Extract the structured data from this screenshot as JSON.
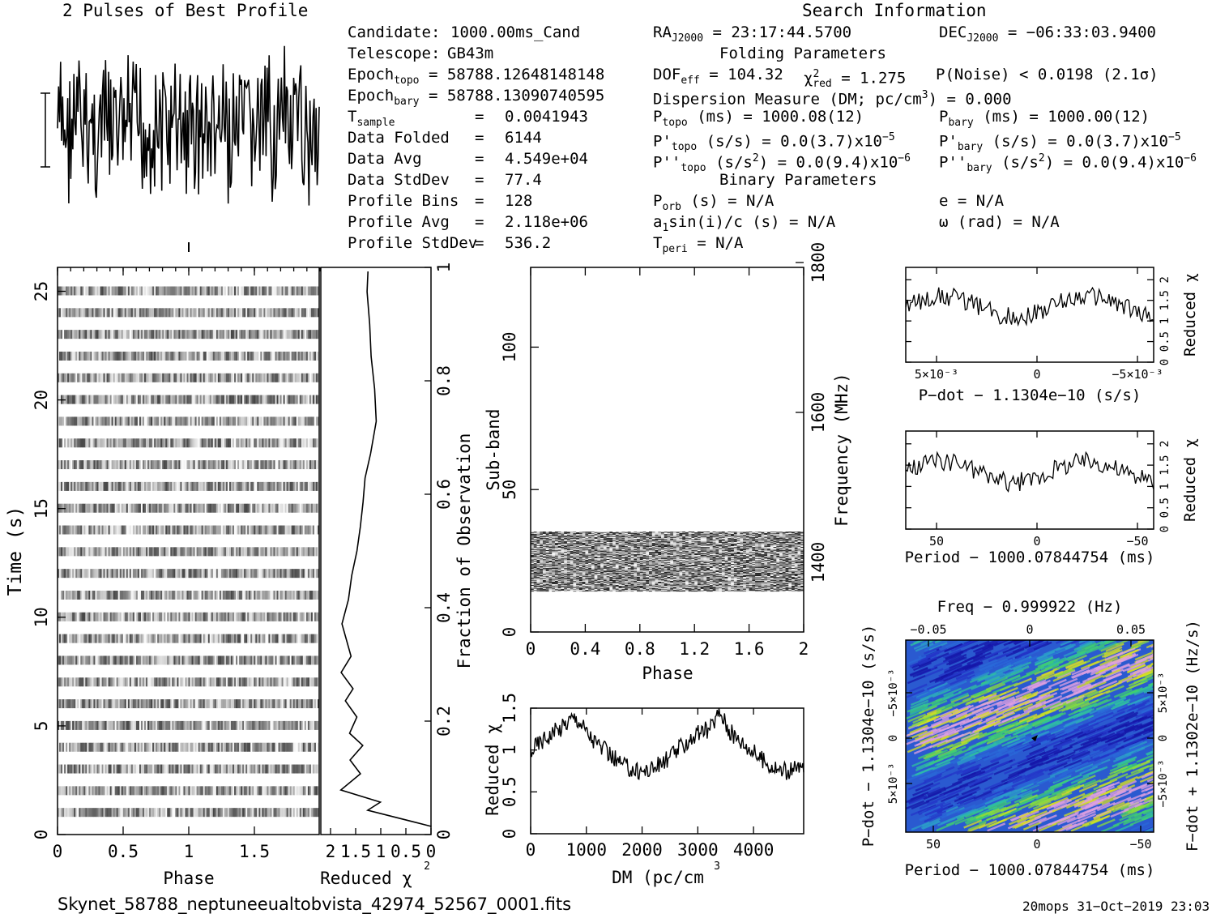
{
  "profile_title": "2 Pulses of Best Profile",
  "search_title": "Search Information",
  "info_left": [
    [
      "Candidate:",
      "1000.00ms_Cand"
    ],
    [
      "Telescope:",
      "GB43m"
    ],
    [
      "Epoch",
      "topo",
      "= 58788.12648148148"
    ],
    [
      "Epoch",
      "bary",
      "= 58788.13090740595"
    ],
    [
      "T",
      "sample",
      "=",
      "0.0041943"
    ],
    [
      "Data Folded",
      "=",
      "6144"
    ],
    [
      "Data Avg",
      "=",
      "4.549e+04"
    ],
    [
      "Data StdDev",
      "=",
      "77.4"
    ],
    [
      "Profile Bins",
      "=",
      "128"
    ],
    [
      "Profile Avg",
      "=",
      "2.118e+06"
    ],
    [
      "Profile StdDev",
      "=",
      "536.2"
    ]
  ],
  "info_mid": {
    "ra": "= 23:17:44.5700",
    "dec": "= −06:33:03.9400",
    "folding_title": "Folding Parameters",
    "dof": "= 104.32",
    "chi2": "= 1.275",
    "pnoise": "P(Noise) < 0.0198   (2.1σ)",
    "dm_line": "Dispersion Measure (DM; pc/cm",
    "dm_val": ") = 0.000",
    "ptopo": "(ms) =  1000.08(12)",
    "pbary": "(ms) =  1000.00(12)",
    "pdtopo": "(s/s) = 0.0(3.7)x10",
    "pdtopo_exp": "−5",
    "pdbary": "(s/s) = 0.0(3.7)x10",
    "pdbary_exp": "−5",
    "pddtopo": "(s/s",
    "pddtopo_val": ") = 0.0(9.4)x10",
    "pddtopo_exp": "−6",
    "pddbary": "(s/s",
    "pddbary_val": ") = 0.0(9.4)x10",
    "pddbary_exp": "−6",
    "binary_title": "Binary Parameters",
    "porb": "(s) = N/A",
    "e": "e = N/A",
    "a1": "sin(i)/c (s) = N/A",
    "omega": "ω (rad) = N/A",
    "tperi": "= N/A"
  },
  "footer_file": "Skynet_58788_neptuneeualtobvista_42974_52567_0001.fits",
  "footer_stamp": "20mops 31−Oct−2019 23:03",
  "chart_data": [
    {
      "type": "line",
      "title": "2 Pulses of Best Profile",
      "xlim": [
        0,
        2
      ]
    },
    {
      "type": "heatmap",
      "name": "time-phase",
      "xlabel": "Phase",
      "ylabel": "Time (s)",
      "xlim": [
        0,
        2
      ],
      "ylim": [
        0,
        26
      ],
      "xticks": [
        "0",
        "0.5",
        "1",
        "1.5"
      ],
      "yticks": [
        "0",
        "5",
        "10",
        "15",
        "20",
        "25"
      ]
    },
    {
      "type": "line",
      "name": "reduced-chi2-vs-time",
      "xlabel": "Reduced χ",
      "xticks": [
        "2",
        "1.5",
        "1",
        "0.5",
        "0"
      ],
      "right_label": "Fraction of Observation",
      "right_ticks": [
        "0",
        "0.2",
        "0.4",
        "0.6",
        "0.8",
        "1"
      ]
    },
    {
      "type": "heatmap",
      "name": "subband-phase",
      "xlabel": "Phase",
      "ylabel": "Sub-band",
      "right_label": "Frequency (MHz)",
      "xlim": [
        0,
        2
      ],
      "ylim": [
        0,
        128
      ],
      "xticks": [
        "0",
        "0.4",
        "0.8",
        "1.2",
        "1.6",
        "2"
      ],
      "yticks": [
        "0",
        "50",
        "100"
      ],
      "right_ticks": [
        "1400",
        "1600",
        "1800"
      ]
    },
    {
      "type": "line",
      "name": "chi2-vs-dm",
      "xlabel": "DM (pc/cm",
      "ylabel": "Reduced χ",
      "xlim": [
        0,
        4900
      ],
      "ylim": [
        0,
        1.5
      ],
      "xticks": [
        "0",
        "1000",
        "2000",
        "3000",
        "4000"
      ],
      "yticks": [
        "0",
        "0.5",
        "1",
        "1.5"
      ]
    },
    {
      "type": "line",
      "name": "chi2-vs-pdot",
      "xlabel": "P−dot − 1.1304e−10 (s/s)",
      "ylabel": "Reduced χ",
      "xticks": [
        "5×10⁻³",
        "0",
        "−5×10⁻³"
      ],
      "yticks": [
        "0",
        "0.5",
        "1",
        "1.5",
        "2"
      ]
    },
    {
      "type": "line",
      "name": "chi2-vs-period",
      "xlabel": "Period − 1000.07844754 (ms)",
      "ylabel": "Reduced χ",
      "xticks": [
        "50",
        "0",
        "−50"
      ],
      "yticks": [
        "0",
        "0.5",
        "1",
        "1.5",
        "2"
      ]
    },
    {
      "type": "heatmap",
      "name": "pdot-period-plane",
      "xlabel": "Period − 1000.07844754 (ms)",
      "top_label": "Freq − 0.999922 (Hz)",
      "ylabel": "P−dot − 1.1304e−10 (s/s)",
      "right_label": "F−dot + 1.1302e−10 (Hz/s)",
      "xticks": [
        "50",
        "0",
        "−50"
      ],
      "top_ticks": [
        "−0.05",
        "0",
        "0.05"
      ],
      "yticks": [
        "−5×10⁻³",
        "0",
        "5×10⁻³"
      ],
      "right_ticks": [
        "5×10⁻³",
        "0",
        "−5×10⁻³"
      ]
    }
  ]
}
